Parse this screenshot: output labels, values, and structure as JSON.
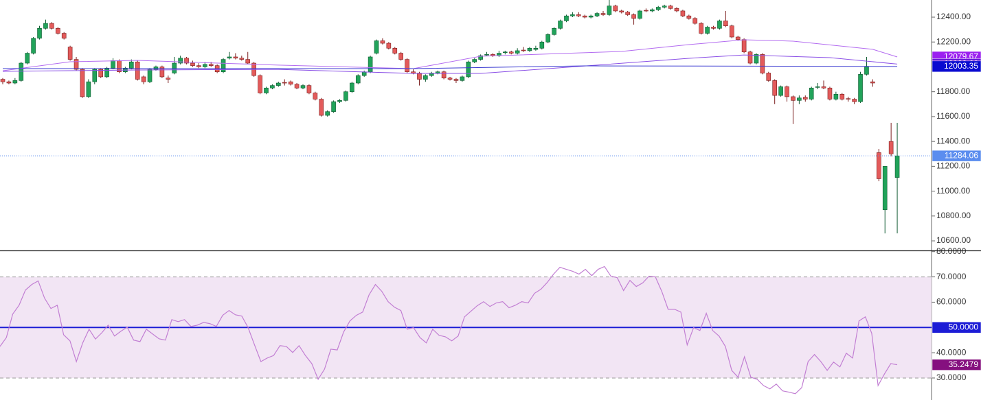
{
  "chart_data": [
    {
      "type": "candlestick",
      "xlim": [
        -0.45,
        151.6
      ],
      "ylim": [
        10523,
        12538
      ],
      "yticks": [
        {
          "value": 12400,
          "label": "12400.00"
        },
        {
          "value": 12200,
          "label": "12200.00"
        },
        {
          "value": 12000,
          "label": "12000.00"
        },
        {
          "value": 11800,
          "label": "11800.00"
        },
        {
          "value": 11600,
          "label": "11600.00"
        },
        {
          "value": 11400,
          "label": "11400.00"
        },
        {
          "value": 11200,
          "label": "11200.00"
        },
        {
          "value": 11000,
          "label": "11000.00"
        },
        {
          "value": 10800,
          "label": "10800.00"
        },
        {
          "value": 10600,
          "label": "10600.00"
        }
      ],
      "up_color": "#21a35a",
      "down_color": "#e35b5b",
      "ohlc": [
        [
          11900,
          11910,
          11860,
          11880
        ],
        [
          11880,
          11890,
          11860,
          11870
        ],
        [
          11870,
          11910,
          11860,
          11890
        ],
        [
          11890,
          12040,
          11880,
          12030
        ],
        [
          12030,
          12120,
          12020,
          12110
        ],
        [
          12110,
          12240,
          12100,
          12230
        ],
        [
          12230,
          12330,
          12220,
          12310
        ],
        [
          12310,
          12380,
          12300,
          12350
        ],
        [
          12350,
          12360,
          12300,
          12310
        ],
        [
          12310,
          12320,
          12260,
          12270
        ],
        [
          12270,
          12280,
          12220,
          12230
        ],
        [
          12160,
          12170,
          12050,
          12060
        ],
        [
          12060,
          12080,
          11970,
          11980
        ],
        [
          11980,
          11990,
          11750,
          11760
        ],
        [
          11760,
          11900,
          11750,
          11880
        ],
        [
          11880,
          11990,
          11860,
          11980
        ],
        [
          11980,
          11990,
          11910,
          11920
        ],
        [
          11920,
          12000,
          11910,
          11990
        ],
        [
          11990,
          12070,
          11980,
          12050
        ],
        [
          12050,
          12060,
          11950,
          11960
        ],
        [
          11960,
          12000,
          11950,
          11990
        ],
        [
          11990,
          12060,
          11980,
          12040
        ],
        [
          12040,
          12050,
          11890,
          11900
        ],
        [
          11920,
          11930,
          11860,
          11880
        ],
        [
          11880,
          11990,
          11870,
          11980
        ],
        [
          11980,
          12010,
          11970,
          12000
        ],
        [
          12000,
          12010,
          11910,
          11920
        ],
        [
          11910,
          11930,
          11870,
          11900
        ],
        [
          11950,
          12080,
          11940,
          12030
        ],
        [
          12030,
          12090,
          12020,
          12070
        ],
        [
          12070,
          12080,
          12020,
          12030
        ],
        [
          12030,
          12050,
          12000,
          12010
        ],
        [
          12010,
          12030,
          11990,
          12000
        ],
        [
          12000,
          12040,
          11990,
          12020
        ],
        [
          12020,
          12040,
          12000,
          12010
        ],
        [
          12010,
          12020,
          11950,
          11960
        ],
        [
          11960,
          12070,
          11950,
          12060
        ],
        [
          12070,
          12120,
          12060,
          12080
        ],
        [
          12080,
          12110,
          12060,
          12070
        ],
        [
          12070,
          12090,
          12050,
          12060
        ],
        [
          12060,
          12120,
          12020,
          12030
        ],
        [
          12030,
          12040,
          11920,
          11930
        ],
        [
          11930,
          11940,
          11780,
          11790
        ],
        [
          11790,
          11840,
          11780,
          11830
        ],
        [
          11830,
          11860,
          11820,
          11850
        ],
        [
          11850,
          11880,
          11840,
          11870
        ],
        [
          11875,
          11900,
          11850,
          11870
        ],
        [
          11880,
          11890,
          11850,
          11860
        ],
        [
          11860,
          11870,
          11820,
          11830
        ],
        [
          11830,
          11860,
          11820,
          11850
        ],
        [
          11850,
          11860,
          11780,
          11790
        ],
        [
          11790,
          11800,
          11730,
          11740
        ],
        [
          11740,
          11750,
          11600,
          11610
        ],
        [
          11610,
          11650,
          11600,
          11640
        ],
        [
          11640,
          11730,
          11630,
          11720
        ],
        [
          11720,
          11740,
          11710,
          11730
        ],
        [
          11730,
          11810,
          11720,
          11800
        ],
        [
          11800,
          11880,
          11790,
          11870
        ],
        [
          11870,
          11940,
          11860,
          11930
        ],
        [
          11930,
          11970,
          11920,
          11960
        ],
        [
          11960,
          12090,
          11950,
          12080
        ],
        [
          12110,
          12220,
          12100,
          12210
        ],
        [
          12210,
          12230,
          12180,
          12190
        ],
        [
          12190,
          12200,
          12140,
          12150
        ],
        [
          12150,
          12160,
          12100,
          12110
        ],
        [
          12110,
          12120,
          12050,
          12060
        ],
        [
          12060,
          12070,
          11950,
          11960
        ],
        [
          11960,
          11980,
          11940,
          11950
        ],
        [
          11950,
          11960,
          11850,
          11900
        ],
        [
          11900,
          11940,
          11880,
          11930
        ],
        [
          11930,
          11960,
          11920,
          11950
        ],
        [
          11950,
          11970,
          11940,
          11960
        ],
        [
          11960,
          11970,
          11900,
          11910
        ],
        [
          11910,
          11920,
          11890,
          11900
        ],
        [
          11900,
          11910,
          11870,
          11890
        ],
        [
          11890,
          11930,
          11880,
          11920
        ],
        [
          11920,
          12050,
          11910,
          12040
        ],
        [
          12040,
          12070,
          12030,
          12060
        ],
        [
          12060,
          12100,
          12050,
          12090
        ],
        [
          12095,
          12120,
          12090,
          12100
        ],
        [
          12100,
          12110,
          12080,
          12090
        ],
        [
          12090,
          12130,
          12080,
          12110
        ],
        [
          12115,
          12130,
          12100,
          12120
        ],
        [
          12120,
          12130,
          12100,
          12110
        ],
        [
          12110,
          12150,
          12100,
          12130
        ],
        [
          12135,
          12160,
          12120,
          12130
        ],
        [
          12130,
          12160,
          12120,
          12150
        ],
        [
          12140,
          12170,
          12130,
          12150
        ],
        [
          12150,
          12210,
          12140,
          12200
        ],
        [
          12200,
          12270,
          12190,
          12260
        ],
        [
          12260,
          12320,
          12250,
          12310
        ],
        [
          12310,
          12380,
          12300,
          12370
        ],
        [
          12370,
          12420,
          12360,
          12410
        ],
        [
          12410,
          12440,
          12400,
          12420
        ],
        [
          12420,
          12440,
          12400,
          12410
        ],
        [
          12410,
          12420,
          12390,
          12400
        ],
        [
          12400,
          12420,
          12390,
          12410
        ],
        [
          12410,
          12440,
          12400,
          12430
        ],
        [
          12430,
          12450,
          12410,
          12420
        ],
        [
          12420,
          12540,
          12410,
          12490
        ],
        [
          12490,
          12500,
          12440,
          12450
        ],
        [
          12450,
          12460,
          12430,
          12440
        ],
        [
          12440,
          12450,
          12410,
          12420
        ],
        [
          12420,
          12430,
          12340,
          12390
        ],
        [
          12390,
          12460,
          12380,
          12450
        ],
        [
          12455,
          12470,
          12440,
          12450
        ],
        [
          12450,
          12470,
          12440,
          12460
        ],
        [
          12460,
          12490,
          12450,
          12480
        ],
        [
          12480,
          12500,
          12470,
          12490
        ],
        [
          12490,
          12500,
          12460,
          12470
        ],
        [
          12470,
          12480,
          12440,
          12450
        ],
        [
          12450,
          12460,
          12400,
          12410
        ],
        [
          12410,
          12420,
          12380,
          12390
        ],
        [
          12390,
          12400,
          12340,
          12350
        ],
        [
          12350,
          12360,
          12260,
          12270
        ],
        [
          12270,
          12330,
          12260,
          12320
        ],
        [
          12320,
          12330,
          12300,
          12310
        ],
        [
          12310,
          12380,
          12300,
          12370
        ],
        [
          12370,
          12450,
          12320,
          12330
        ],
        [
          12330,
          12340,
          12230,
          12240
        ],
        [
          12240,
          12250,
          12210,
          12220
        ],
        [
          12220,
          12230,
          12110,
          12120
        ],
        [
          12120,
          12130,
          12020,
          12030
        ],
        [
          12030,
          12110,
          12020,
          12100
        ],
        [
          12100,
          12110,
          11940,
          11950
        ],
        [
          11950,
          11960,
          11880,
          11890
        ],
        [
          11890,
          11900,
          11700,
          11770
        ],
        [
          11770,
          11850,
          11760,
          11840
        ],
        [
          11840,
          11850,
          11720,
          11760
        ],
        [
          11760,
          11770,
          11540,
          11730
        ],
        [
          11730,
          11770,
          11700,
          11750
        ],
        [
          11755,
          11770,
          11720,
          11740
        ],
        [
          11740,
          11840,
          11730,
          11830
        ],
        [
          11835,
          11870,
          11820,
          11840
        ],
        [
          11840,
          11890,
          11820,
          11830
        ],
        [
          11830,
          11840,
          11730,
          11740
        ],
        [
          11740,
          11800,
          11730,
          11780
        ],
        [
          11780,
          11790,
          11730,
          11740
        ],
        [
          11745,
          11760,
          11720,
          11740
        ],
        [
          11740,
          11750,
          11700,
          11720
        ],
        [
          11720,
          11960,
          11710,
          11940
        ],
        [
          11940,
          12080,
          11930,
          12000
        ],
        [
          11880,
          11900,
          11840,
          11870
        ],
        [
          11310,
          11340,
          11080,
          11100
        ],
        [
          10850,
          11200,
          10660,
          11200
        ],
        [
          11400,
          11550,
          11280,
          11300
        ],
        [
          11110,
          11550,
          10660,
          11284.06
        ]
      ],
      "moving_averages": [
        {
          "color": "#b36cf0",
          "x": [
            0,
            11,
            22,
            45,
            67,
            78,
            101,
            112,
            121,
            129,
            142,
            146
          ],
          "values": [
            11969,
            12041,
            12052,
            12014,
            11986,
            12085,
            12124,
            12179,
            12218,
            12207,
            12141,
            12079.67
          ]
        },
        {
          "color": "#8a4fe6",
          "x": [
            0,
            22,
            45,
            67,
            78,
            97,
            112,
            121,
            135,
            146
          ],
          "values": [
            11964,
            11975,
            11980,
            11947,
            11947,
            12014,
            12069,
            12096,
            12074,
            12022.6
          ]
        },
        {
          "color": "#3a3ad0",
          "x": [
            0,
            67,
            95,
            146
          ],
          "values": [
            11986,
            11986,
            12008,
            12003.35
          ]
        }
      ],
      "last_price": {
        "value": 11284.06,
        "color": "#5b8def"
      },
      "price_tags": [
        {
          "value": 12079.67,
          "label": "12079.67",
          "color": "#9b1ff0"
        },
        {
          "value": 12022.6,
          "label": "12022.60",
          "color": "#6a18d8"
        },
        {
          "value": 12003.35,
          "label": "12003.35",
          "color": "#0a0ad0"
        }
      ]
    },
    {
      "type": "line",
      "color": "#c27fd3",
      "xlim": [
        0,
        146.4
      ],
      "ylim": [
        21.3,
        80.2
      ],
      "yticks": [
        {
          "value": 80,
          "label": "80.0000"
        },
        {
          "value": 70,
          "label": "70.0000"
        },
        {
          "value": 60,
          "label": "60.0000"
        },
        {
          "value": 50,
          "label": "50.0000"
        },
        {
          "value": 40,
          "label": "40.0000"
        },
        {
          "value": 30,
          "label": "30.0000"
        }
      ],
      "band": [
        30,
        70
      ],
      "band_color": "#f2e5f4",
      "midline": {
        "value": 50,
        "label": "50.0000",
        "color": "#1c1cd6"
      },
      "last_tag": {
        "value": 35.2479,
        "color": "#85107f"
      },
      "values": [
        42.5,
        46,
        55.3,
        58.8,
        64.8,
        67,
        68.4,
        61.6,
        57.5,
        58.8,
        47.1,
        44.7,
        36.5,
        43.9,
        49.3,
        45.4,
        47.9,
        50.9,
        46.6,
        48.5,
        50.1,
        45,
        44.4,
        49.3,
        47.4,
        45.5,
        45,
        53.1,
        52.3,
        53.1,
        50.4,
        50.9,
        52,
        51.5,
        50.4,
        54.8,
        56.7,
        55,
        54.5,
        49.9,
        43.1,
        36.5,
        37.9,
        38.9,
        42.8,
        42.5,
        40.1,
        42.8,
        38.9,
        35.7,
        29.5,
        33.5,
        41.4,
        41.1,
        48.2,
        52.6,
        54.8,
        56.1,
        62.9,
        67,
        64.3,
        60.2,
        58,
        56.7,
        49.3,
        49.9,
        46,
        43.9,
        49.3,
        46.9,
        46.3,
        44.7,
        46.6,
        54.2,
        56.4,
        58.6,
        60.2,
        58.3,
        59.7,
        60.2,
        57.8,
        58.8,
        60.2,
        59.7,
        63.5,
        65.1,
        67.8,
        71.1,
        73.8,
        73,
        72.2,
        71.1,
        73,
        70.5,
        73,
        74.1,
        70.3,
        69.7,
        64.6,
        68.6,
        66.2,
        67.6,
        70.3,
        70,
        64.3,
        57.2,
        57.2,
        56.1,
        43.1,
        49.9,
        48.8,
        55.6,
        48.8,
        46.6,
        42.5,
        33,
        30.3,
        38.4,
        30.3,
        29.5,
        27,
        25.7,
        27.6,
        24.9,
        24.4,
        23.8,
        26.2,
        36.5,
        39.3,
        36.5,
        33,
        36.3,
        34.4,
        39.8,
        37.9,
        52.6,
        54.2,
        47.7,
        27,
        31.6,
        35.7,
        35.2479
      ]
    }
  ]
}
